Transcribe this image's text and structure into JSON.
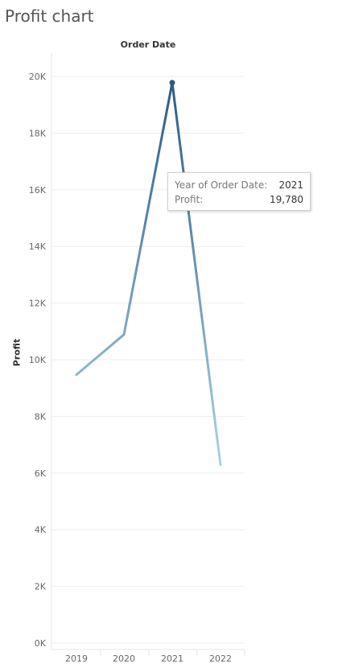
{
  "sheet_title": "Profit chart",
  "colors": {
    "grid": "#eeeeee",
    "axis_text": "#666666",
    "line_dark": "#2c5a85",
    "line_light": "#a8d4e6"
  },
  "tooltip": {
    "year_label": "Year of Order Date:",
    "year_value": "2021",
    "profit_label": "Profit:",
    "profit_value": "19,780"
  },
  "chart_data": {
    "type": "line",
    "title": "",
    "column_header": "Order Date",
    "xlabel": "",
    "ylabel": "Profit",
    "x": [
      "2019",
      "2020",
      "2021",
      "2022"
    ],
    "y": [
      9470,
      10890,
      19780,
      6290
    ],
    "ylim": [
      0,
      21000
    ],
    "yticks": [
      0,
      2000,
      4000,
      6000,
      8000,
      10000,
      12000,
      14000,
      16000,
      18000,
      20000
    ],
    "ytick_labels": [
      "0K",
      "2K",
      "4K",
      "6K",
      "8K",
      "10K",
      "12K",
      "14K",
      "16K",
      "18K",
      "20K"
    ],
    "grid": true,
    "highlighted_point": "2021"
  }
}
